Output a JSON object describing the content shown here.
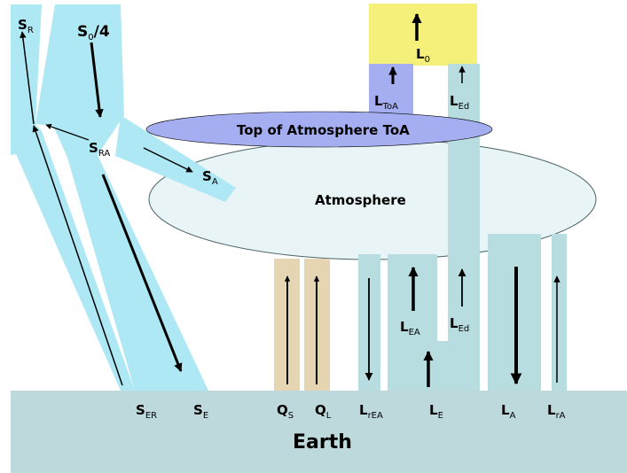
{
  "colors": {
    "shortwave": "#aee8f5",
    "longwave": "#b8dde0",
    "heat": "#e5d5b3",
    "atmosphere_fill": "#e8f4f5",
    "toa_fill": "#a4aef0",
    "space_box": "#f5f07a",
    "earth": "#bdd9db"
  },
  "labels": {
    "earth": "Earth",
    "atmosphere": "Atmosphere",
    "toa": "Top of Atmosphere ToA",
    "S_R": {
      "main": "S",
      "sub": "R"
    },
    "S0_4": {
      "main": "S",
      "sub": "0",
      "suffix": "/4"
    },
    "S_RA": {
      "main": "S",
      "sub": "RA"
    },
    "S_A": {
      "main": "S",
      "sub": "A"
    },
    "S_ER": {
      "main": "S",
      "sub": "ER"
    },
    "S_E": {
      "main": "S",
      "sub": "E"
    },
    "Q_S": {
      "main": "Q",
      "sub": "S"
    },
    "Q_L": {
      "main": "Q",
      "sub": "L"
    },
    "L_rEA": {
      "main": "L",
      "sub": "rEA"
    },
    "L_E": {
      "main": "L",
      "sub": "E"
    },
    "L_A": {
      "main": "L",
      "sub": "A"
    },
    "L_rA": {
      "main": "L",
      "sub": "rA"
    },
    "L_EA": {
      "main": "L",
      "sub": "EA"
    },
    "L_Ed_lower": {
      "main": "L",
      "sub": "Ed"
    },
    "L_Ed_upper": {
      "main": "L",
      "sub": "Ed"
    },
    "L_ToA": {
      "main": "L",
      "sub": "ToA"
    },
    "L_0": {
      "main": "L",
      "sub": "0"
    }
  }
}
